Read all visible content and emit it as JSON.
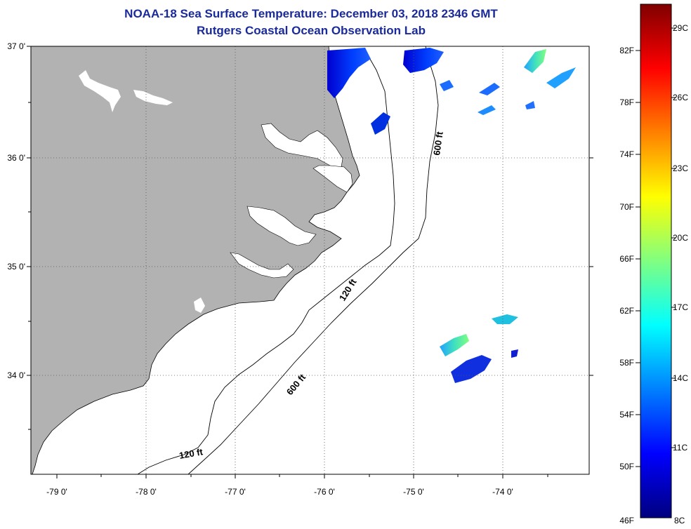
{
  "title": "NOAA-18 Sea Surface Temperature:  December 03, 2018 2346 GMT",
  "subtitle": "Rutgers Coastal Ocean Observation Lab",
  "lat_labels": [
    "37 0'",
    "36 0'",
    "35 0'",
    "34 0'"
  ],
  "lon_labels": [
    "-79 0'",
    "-78 0'",
    "-77 0'",
    "-76 0'",
    "-75 0'",
    "-74 0'"
  ],
  "contour_labels": {
    "c600_north": "600 ft",
    "c120_mid": "120 ft",
    "c600_south": "600 ft",
    "c120_south": "120 ft"
  },
  "colorbar": {
    "fahrenheit": [
      "82F",
      "78F",
      "74F",
      "70F",
      "66F",
      "62F",
      "58F",
      "54F",
      "50F",
      "46F"
    ],
    "celsius": [
      "29C",
      "26C",
      "23C",
      "20C",
      "17C",
      "14C",
      "11C",
      "8C"
    ],
    "colors": [
      "#00007f",
      "#0000ff",
      "#0080ff",
      "#00ffff",
      "#80ff80",
      "#ffff00",
      "#ff8000",
      "#ff0000",
      "#7f0000"
    ]
  },
  "colors": {
    "land": "#b2b2b2",
    "water": "#ffffff",
    "title": "#1a2a9a"
  }
}
